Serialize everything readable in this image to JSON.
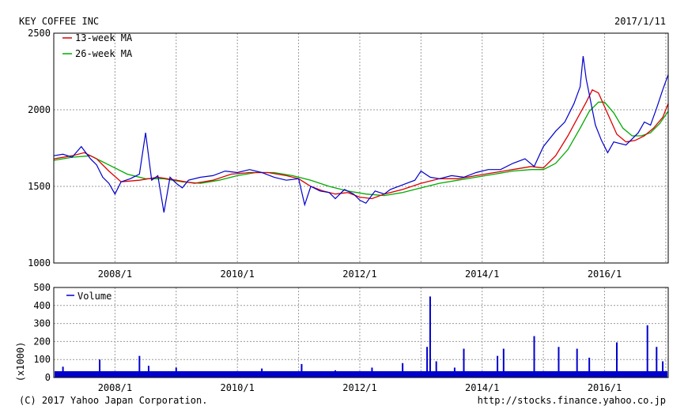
{
  "header": {
    "title": "KEY COFFEE INC",
    "date": "2017/1/11"
  },
  "footer": {
    "copyright": "(C) 2017 Yahoo Japan Corporation.",
    "url": "http://stocks.finance.yahoo.co.jp"
  },
  "colors": {
    "price": "#0000cc",
    "ma13": "#dd0000",
    "ma26": "#00aa00",
    "volume": "#0000cc",
    "grid": "#9a9a9a"
  },
  "chart_data": [
    {
      "type": "line",
      "title": "KEY COFFEE INC",
      "x_range": [
        2007.0,
        2017.04
      ],
      "ylim": [
        1000,
        2500
      ],
      "y_ticks": [
        "2500",
        "2000",
        "1500",
        "1000"
      ],
      "x_ticks": [
        {
          "x": 2008.0,
          "label": "2008/1"
        },
        {
          "x": 2010.0,
          "label": "2010/1"
        },
        {
          "x": 2012.0,
          "label": "2012/1"
        },
        {
          "x": 2014.0,
          "label": "2014/1"
        },
        {
          "x": 2016.0,
          "label": "2016/1"
        }
      ],
      "grid": true,
      "legend": "top-left",
      "series": [
        {
          "name": "",
          "kind": "price",
          "x": [
            2007.0,
            2007.15,
            2007.3,
            2007.45,
            2007.6,
            2007.7,
            2007.8,
            2007.9,
            2008.0,
            2008.1,
            2008.25,
            2008.4,
            2008.5,
            2008.6,
            2008.7,
            2008.8,
            2008.9,
            2009.0,
            2009.1,
            2009.2,
            2009.4,
            2009.6,
            2009.8,
            2010.0,
            2010.2,
            2010.4,
            2010.6,
            2010.8,
            2011.0,
            2011.1,
            2011.2,
            2011.35,
            2011.5,
            2011.6,
            2011.75,
            2011.9,
            2012.0,
            2012.1,
            2012.25,
            2012.4,
            2012.5,
            2012.7,
            2012.9,
            2013.0,
            2013.15,
            2013.3,
            2013.5,
            2013.7,
            2013.9,
            2014.1,
            2014.3,
            2014.5,
            2014.7,
            2014.85,
            2015.0,
            2015.2,
            2015.35,
            2015.5,
            2015.6,
            2015.65,
            2015.7,
            2015.75,
            2015.8,
            2015.85,
            2015.95,
            2016.05,
            2016.15,
            2016.25,
            2016.35,
            2016.45,
            2016.55,
            2016.65,
            2016.75,
            2016.85,
            2016.95,
            2017.04
          ],
          "values": [
            1700,
            1710,
            1690,
            1760,
            1680,
            1640,
            1560,
            1520,
            1450,
            1530,
            1550,
            1580,
            1850,
            1540,
            1570,
            1330,
            1560,
            1520,
            1490,
            1540,
            1560,
            1570,
            1600,
            1590,
            1610,
            1590,
            1560,
            1540,
            1550,
            1380,
            1500,
            1470,
            1460,
            1420,
            1480,
            1450,
            1410,
            1390,
            1470,
            1450,
            1480,
            1510,
            1540,
            1600,
            1560,
            1550,
            1570,
            1560,
            1590,
            1610,
            1610,
            1650,
            1680,
            1630,
            1760,
            1860,
            1920,
            2040,
            2150,
            2350,
            2200,
            2100,
            2000,
            1900,
            1800,
            1720,
            1790,
            1780,
            1770,
            1810,
            1850,
            1920,
            1900,
            2010,
            2130,
            2230
          ]
        },
        {
          "name": "13-week MA",
          "kind": "ma13",
          "x": [
            2007.0,
            2007.3,
            2007.5,
            2007.7,
            2007.9,
            2008.1,
            2008.4,
            2008.7,
            2009.0,
            2009.3,
            2009.6,
            2009.9,
            2010.2,
            2010.5,
            2010.8,
            2011.0,
            2011.2,
            2011.4,
            2011.6,
            2011.8,
            2012.0,
            2012.2,
            2012.4,
            2012.7,
            2013.0,
            2013.3,
            2013.6,
            2013.9,
            2014.2,
            2014.5,
            2014.8,
            2015.0,
            2015.2,
            2015.4,
            2015.55,
            2015.7,
            2015.8,
            2015.9,
            2016.0,
            2016.1,
            2016.2,
            2016.35,
            2016.5,
            2016.65,
            2016.8,
            2016.95,
            2017.04
          ],
          "values": [
            1680,
            1700,
            1720,
            1680,
            1600,
            1530,
            1540,
            1560,
            1540,
            1520,
            1540,
            1580,
            1590,
            1590,
            1570,
            1550,
            1500,
            1470,
            1450,
            1460,
            1430,
            1420,
            1450,
            1480,
            1520,
            1550,
            1550,
            1570,
            1590,
            1610,
            1630,
            1620,
            1700,
            1830,
            1940,
            2050,
            2130,
            2110,
            2020,
            1930,
            1840,
            1790,
            1800,
            1830,
            1880,
            1950,
            2040
          ]
        },
        {
          "name": "26-week MA",
          "kind": "ma26",
          "x": [
            2007.0,
            2007.3,
            2007.6,
            2007.9,
            2008.2,
            2008.5,
            2008.8,
            2009.1,
            2009.4,
            2009.7,
            2010.0,
            2010.3,
            2010.6,
            2010.9,
            2011.2,
            2011.5,
            2011.8,
            2012.1,
            2012.4,
            2012.7,
            2013.0,
            2013.3,
            2013.6,
            2013.9,
            2014.2,
            2014.5,
            2014.8,
            2015.0,
            2015.2,
            2015.4,
            2015.6,
            2015.75,
            2015.9,
            2016.0,
            2016.15,
            2016.3,
            2016.45,
            2016.6,
            2016.75,
            2016.9,
            2017.04
          ],
          "values": [
            1670,
            1690,
            1700,
            1640,
            1580,
            1550,
            1550,
            1530,
            1520,
            1540,
            1570,
            1590,
            1590,
            1570,
            1540,
            1500,
            1470,
            1450,
            1440,
            1460,
            1490,
            1520,
            1540,
            1560,
            1580,
            1600,
            1610,
            1610,
            1650,
            1740,
            1880,
            1990,
            2050,
            2050,
            1980,
            1880,
            1830,
            1830,
            1850,
            1910,
            1990
          ]
        }
      ]
    },
    {
      "type": "bar",
      "y_unit_label": "(x1000)",
      "ylim": [
        0,
        500
      ],
      "y_ticks": [
        "500",
        "400",
        "300",
        "200",
        "100",
        "0"
      ],
      "x_ticks": [
        {
          "x": 2008.0,
          "label": "2008/1"
        },
        {
          "x": 2010.0,
          "label": "2010/1"
        },
        {
          "x": 2012.0,
          "label": "2012/1"
        },
        {
          "x": 2014.0,
          "label": "2014/1"
        },
        {
          "x": 2016.0,
          "label": "2016/1"
        }
      ],
      "grid": true,
      "legend": "top-left",
      "series": [
        {
          "name": "Volume",
          "baseline": 35,
          "spikes": [
            {
              "x": 2007.15,
              "value": 60
            },
            {
              "x": 2007.75,
              "value": 100
            },
            {
              "x": 2008.4,
              "value": 120
            },
            {
              "x": 2008.55,
              "value": 65
            },
            {
              "x": 2009.0,
              "value": 55
            },
            {
              "x": 2010.4,
              "value": 50
            },
            {
              "x": 2011.05,
              "value": 75
            },
            {
              "x": 2011.6,
              "value": 40
            },
            {
              "x": 2012.2,
              "value": 55
            },
            {
              "x": 2012.7,
              "value": 80
            },
            {
              "x": 2013.1,
              "value": 170
            },
            {
              "x": 2013.15,
              "value": 450
            },
            {
              "x": 2013.25,
              "value": 90
            },
            {
              "x": 2013.55,
              "value": 55
            },
            {
              "x": 2013.7,
              "value": 160
            },
            {
              "x": 2014.25,
              "value": 120
            },
            {
              "x": 2014.35,
              "value": 160
            },
            {
              "x": 2014.85,
              "value": 230
            },
            {
              "x": 2015.25,
              "value": 170
            },
            {
              "x": 2015.55,
              "value": 160
            },
            {
              "x": 2015.75,
              "value": 110
            },
            {
              "x": 2016.2,
              "value": 195
            },
            {
              "x": 2016.7,
              "value": 290
            },
            {
              "x": 2016.85,
              "value": 170
            },
            {
              "x": 2016.95,
              "value": 90
            }
          ]
        }
      ]
    }
  ]
}
